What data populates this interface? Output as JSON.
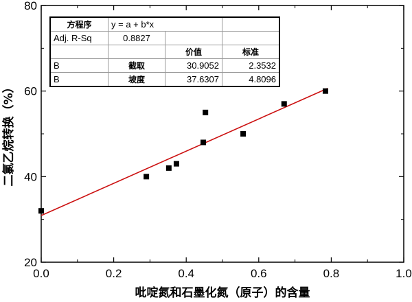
{
  "chart_data": {
    "type": "scatter",
    "xlabel": "吡啶氮和石墨化氮（原子）的含量",
    "ylabel": "二氯乙烷转换（%）",
    "xlim": [
      0.0,
      1.0
    ],
    "ylim": [
      20,
      80
    ],
    "xticks": [
      "0.0",
      "0.2",
      "0.4",
      "0.6",
      "0.8",
      "1.0"
    ],
    "yticks": [
      "20",
      "40",
      "60",
      "80"
    ],
    "grid": false,
    "marker_color": "#000000",
    "fit_color": "#cc1111",
    "points": [
      {
        "x": 0.0,
        "y": 32
      },
      {
        "x": 0.29,
        "y": 40
      },
      {
        "x": 0.352,
        "y": 42
      },
      {
        "x": 0.373,
        "y": 43
      },
      {
        "x": 0.447,
        "y": 48
      },
      {
        "x": 0.453,
        "y": 55
      },
      {
        "x": 0.557,
        "y": 50
      },
      {
        "x": 0.67,
        "y": 57
      },
      {
        "x": 0.784,
        "y": 60
      }
    ],
    "fit": {
      "intercept": 30.9052,
      "slope": 37.6307,
      "x_range": [
        0.0,
        0.79
      ]
    },
    "stats_table": {
      "equation_label": "方程序",
      "equation": "y = a + b*x",
      "adj_r_label": "Adj. R-Sq",
      "adj_r": "0.8827",
      "value_header": "价值",
      "std_header": "标准",
      "rows": [
        {
          "name": "B",
          "param": "截取",
          "value": "30.9052",
          "std": "2.3532"
        },
        {
          "name": "B",
          "param": "坡度",
          "value": "37.6307",
          "std": "4.8096"
        }
      ]
    }
  }
}
